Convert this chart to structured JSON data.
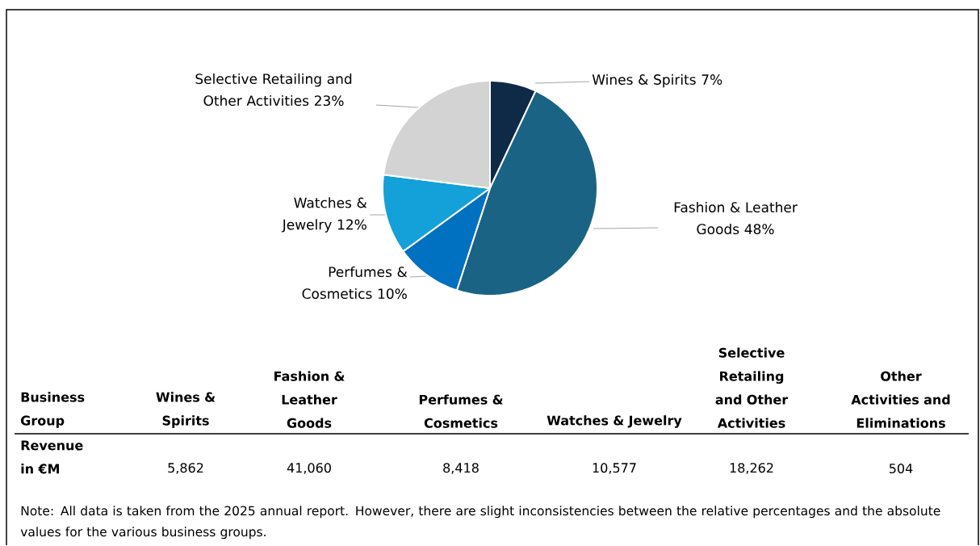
{
  "chart_data": {
    "type": "pie",
    "categories": [
      "Wines & Spirits",
      "Fashion & Leather Goods",
      "Perfumes & Cosmetics",
      "Watches & Jewelry",
      "Selective Retailing and Other Activities"
    ],
    "values": [
      7,
      48,
      10,
      12,
      23
    ],
    "value_labels": [
      "7%",
      "48%",
      "10%",
      "12%",
      "23%"
    ],
    "colors": [
      "#0f2a47",
      "#1a6385",
      "#0070c0",
      "#14a0d8",
      "#d3d3d3"
    ],
    "annotations": [
      "Business Group",
      "Wines & Spirits",
      "Fashion & Leather Goods",
      "Perfumes & Cosmetics",
      "Watches & Jewelry",
      "Selective Retailing and Other Activities",
      "Other Activities and Eliminations",
      "Revenue in €M",
      "5,862",
      "41,060",
      "8,418",
      "10,577",
      "18,262",
      "504",
      "Note: All data is taken from the 2025 annual report. However, there are slight inconsistencies between the relative percentages and the absolute values for the various business groups."
    ]
  }
}
